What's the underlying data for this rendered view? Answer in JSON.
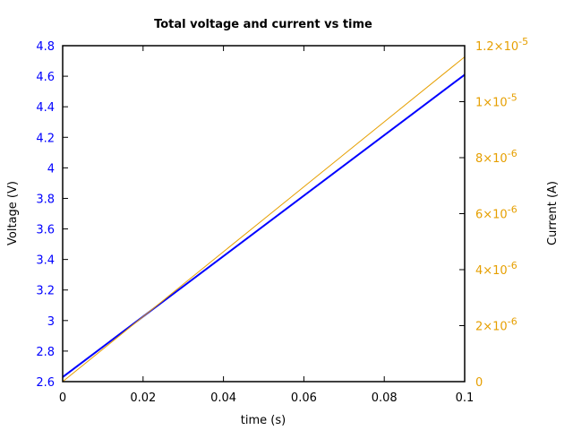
{
  "chart_data": {
    "type": "line",
    "title": "Total voltage and current vs time",
    "xlabel": "time (s)",
    "ylabel": "Voltage (V)",
    "y2label": "Current (A)",
    "xlim": [
      0,
      0.1
    ],
    "ylim": [
      2.6,
      4.8
    ],
    "y2lim": [
      0,
      1.2e-05
    ],
    "grid": false,
    "legend": null,
    "x_ticks": [
      "0",
      "0.02",
      "0.04",
      "0.06",
      "0.08",
      "0.1"
    ],
    "y_ticks": [
      "2.6",
      "2.8",
      "3",
      "3.2",
      "3.4",
      "3.6",
      "3.8",
      "4",
      "4.2",
      "4.4",
      "4.6",
      "4.8"
    ],
    "y2_ticks": [
      {
        "mant": "0",
        "exp": ""
      },
      {
        "mant": "2×10",
        "exp": "-6"
      },
      {
        "mant": "4×10",
        "exp": "-6"
      },
      {
        "mant": "6×10",
        "exp": "-6"
      },
      {
        "mant": "8×10",
        "exp": "-6"
      },
      {
        "mant": "1×10",
        "exp": "-5"
      },
      {
        "mant": "1.2×10",
        "exp": "-5"
      }
    ],
    "x": [
      0,
      0.1
    ],
    "series": [
      {
        "name": "Voltage",
        "axis": "left",
        "color": "#0000ff",
        "values": [
          2.63,
          4.61
        ]
      },
      {
        "name": "Current",
        "axis": "right",
        "color": "#e69f00",
        "values": [
          0.0,
          1.16e-05
        ]
      }
    ]
  },
  "colors": {
    "voltage": "#0000ff",
    "current": "#e69f00",
    "axis": "#000000"
  }
}
